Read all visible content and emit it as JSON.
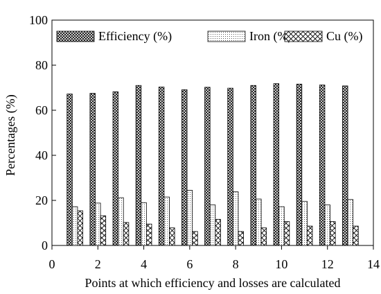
{
  "chart_data": {
    "type": "bar",
    "xlabel": "Points at which efficiency and losses are calculated",
    "ylabel": "Percentages (%)",
    "xlim": [
      0,
      14
    ],
    "ylim": [
      0,
      100
    ],
    "xticks": [
      "0",
      "2",
      "4",
      "6",
      "8",
      "10",
      "12",
      "14"
    ],
    "yticks": [
      "0",
      "20",
      "40",
      "60",
      "80",
      "100"
    ],
    "grid": false,
    "legend_position": "top",
    "x": [
      1,
      2,
      3,
      4,
      5,
      6,
      7,
      8,
      9,
      10,
      11,
      12,
      13
    ],
    "series": [
      {
        "name": "Efficiency (%)",
        "pattern": "crosshatch-dense",
        "values": [
          67.2,
          67.5,
          68.2,
          71.0,
          70.3,
          69.1,
          70.2,
          69.8,
          71.0,
          71.8,
          71.6,
          71.2,
          70.8
        ]
      },
      {
        "name": "Iron (%)",
        "pattern": "dotted",
        "values": [
          17.2,
          18.8,
          21.2,
          19.0,
          21.5,
          24.5,
          18.0,
          23.8,
          20.6,
          17.2,
          19.6,
          18.0,
          20.4
        ]
      },
      {
        "name": "Cu (%)",
        "pattern": "crosshatch-open",
        "values": [
          15.4,
          13.2,
          10.2,
          9.5,
          7.8,
          6.2,
          11.6,
          6.2,
          7.8,
          10.6,
          8.6,
          10.6,
          8.6
        ]
      }
    ]
  }
}
